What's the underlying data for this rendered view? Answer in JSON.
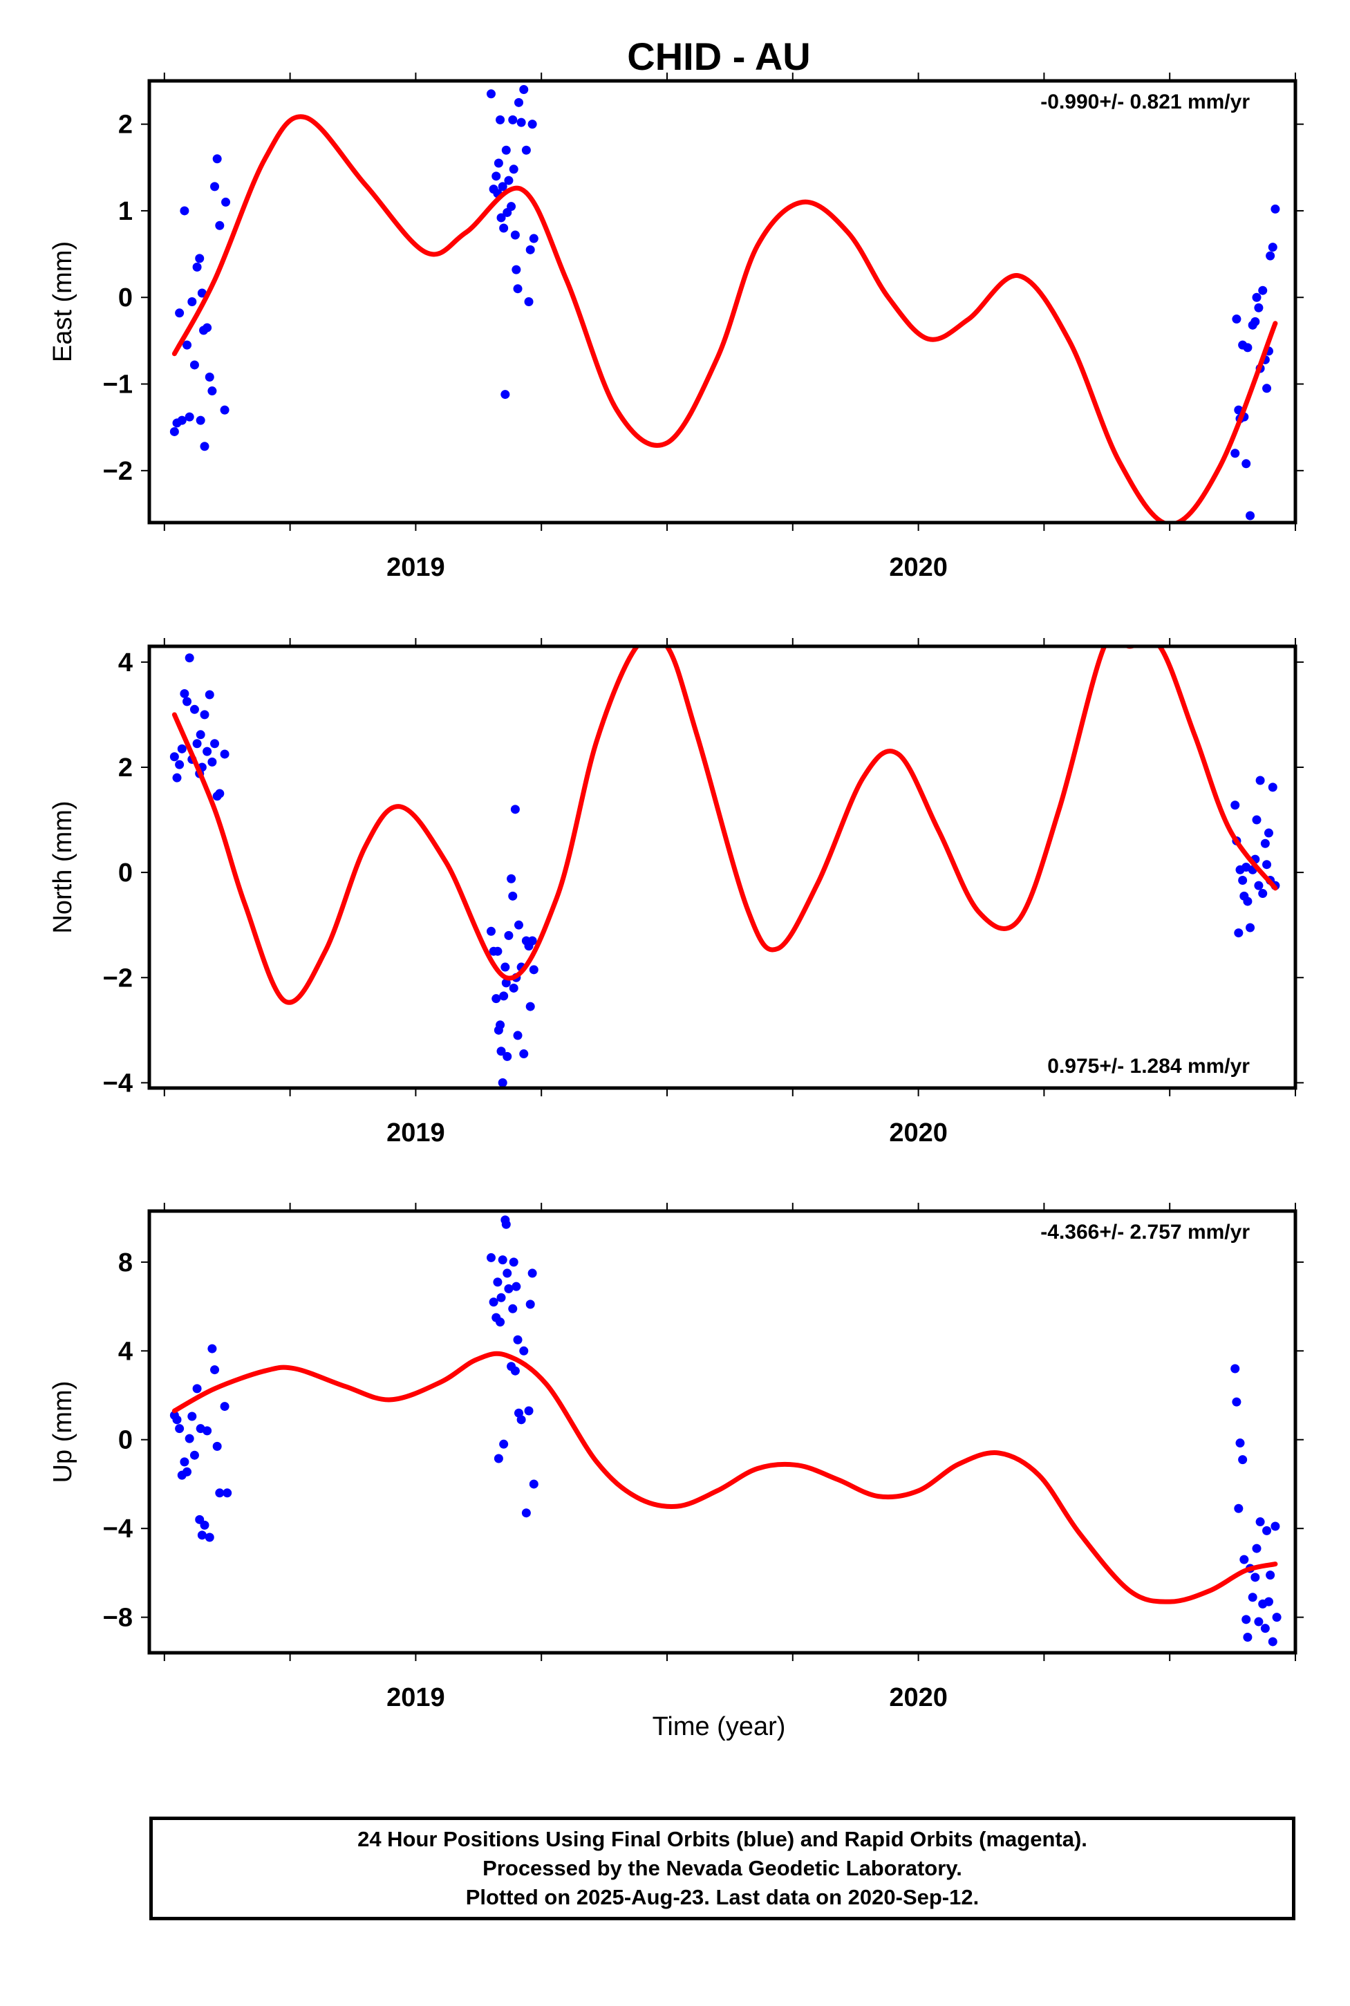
{
  "title": "CHID - AU",
  "xlabel": "Time (year)",
  "colors": {
    "final_orbits": "#0000ff",
    "fit": "#ff0000",
    "frame": "#000000"
  },
  "caption": {
    "line1": "24 Hour Positions Using Final Orbits (blue) and Rapid Orbits (magenta).",
    "line2": "Processed by the Nevada Geodetic Laboratory.",
    "line3": "Plotted on 2025-Aug-23. Last data on 2020-Sep-12."
  },
  "chart_data": [
    {
      "type": "scatter",
      "panel": "east",
      "ylabel": "East (mm)",
      "rate": "-0.990+/- 0.821 mm/yr",
      "rate_position": "top-right",
      "xlim": [
        2018.47,
        2020.75
      ],
      "ylim": [
        -2.6,
        2.5
      ],
      "xticks": [
        2019,
        2020
      ],
      "yticks": [
        -2,
        -1,
        0,
        1,
        2
      ],
      "ytick_labels": [
        "−2",
        "−1",
        "0",
        "1",
        "2"
      ],
      "points": [
        [
          2018.52,
          -1.55
        ],
        [
          2018.525,
          -1.45
        ],
        [
          2018.53,
          -0.18
        ],
        [
          2018.535,
          -1.42
        ],
        [
          2018.54,
          1.0
        ],
        [
          2018.545,
          -0.55
        ],
        [
          2018.55,
          -1.38
        ],
        [
          2018.555,
          -0.05
        ],
        [
          2018.56,
          -0.78
        ],
        [
          2018.565,
          0.35
        ],
        [
          2018.57,
          0.45
        ],
        [
          2018.572,
          -1.42
        ],
        [
          2018.575,
          0.05
        ],
        [
          2018.578,
          -0.38
        ],
        [
          2018.58,
          -1.72
        ],
        [
          2018.585,
          -0.35
        ],
        [
          2018.59,
          -0.92
        ],
        [
          2018.595,
          -1.08
        ],
        [
          2018.6,
          1.28
        ],
        [
          2018.605,
          1.6
        ],
        [
          2018.61,
          0.83
        ],
        [
          2018.62,
          -1.3
        ],
        [
          2018.622,
          1.1
        ],
        [
          2019.15,
          2.35
        ],
        [
          2019.155,
          1.25
        ],
        [
          2019.16,
          1.4
        ],
        [
          2019.163,
          1.2
        ],
        [
          2019.165,
          1.55
        ],
        [
          2019.168,
          2.05
        ],
        [
          2019.17,
          0.92
        ],
        [
          2019.173,
          1.28
        ],
        [
          2019.175,
          0.8
        ],
        [
          2019.178,
          -1.12
        ],
        [
          2019.18,
          1.7
        ],
        [
          2019.182,
          0.98
        ],
        [
          2019.185,
          1.35
        ],
        [
          2019.19,
          1.05
        ],
        [
          2019.193,
          2.05
        ],
        [
          2019.195,
          1.48
        ],
        [
          2019.198,
          0.72
        ],
        [
          2019.2,
          0.32
        ],
        [
          2019.203,
          0.1
        ],
        [
          2019.205,
          2.25
        ],
        [
          2019.21,
          2.02
        ],
        [
          2019.215,
          2.4
        ],
        [
          2019.22,
          1.7
        ],
        [
          2019.225,
          -0.05
        ],
        [
          2019.228,
          0.55
        ],
        [
          2019.232,
          2.0
        ],
        [
          2019.235,
          0.68
        ],
        [
          2020.63,
          -1.8
        ],
        [
          2020.633,
          -0.25
        ],
        [
          2020.637,
          -1.3
        ],
        [
          2020.64,
          -1.4
        ],
        [
          2020.645,
          -0.55
        ],
        [
          2020.648,
          -1.38
        ],
        [
          2020.652,
          -1.92
        ],
        [
          2020.655,
          -0.58
        ],
        [
          2020.66,
          -2.52
        ],
        [
          2020.665,
          -0.32
        ],
        [
          2020.67,
          -0.28
        ],
        [
          2020.673,
          0.0
        ],
        [
          2020.677,
          -0.12
        ],
        [
          2020.68,
          -0.82
        ],
        [
          2020.685,
          0.08
        ],
        [
          2020.69,
          -0.72
        ],
        [
          2020.693,
          -1.05
        ],
        [
          2020.697,
          -0.62
        ],
        [
          2020.7,
          0.48
        ],
        [
          2020.705,
          0.58
        ],
        [
          2020.71,
          1.02
        ]
      ],
      "fit_curve": {
        "x": [
          2018.52,
          2018.6,
          2018.7,
          2018.78,
          2018.9,
          2019.02,
          2019.1,
          2019.21,
          2019.3,
          2019.4,
          2019.5,
          2019.6,
          2019.68,
          2019.77,
          2019.86,
          2019.94,
          2020.02,
          2020.1,
          2020.2,
          2020.3,
          2020.4,
          2020.5,
          2020.6,
          2020.71
        ],
        "y": [
          -0.65,
          0.2,
          1.6,
          2.08,
          1.3,
          0.52,
          0.75,
          1.25,
          0.2,
          -1.3,
          -1.68,
          -0.7,
          0.6,
          1.1,
          0.75,
          0.0,
          -0.48,
          -0.25,
          0.25,
          -0.5,
          -1.9,
          -2.62,
          -1.95,
          -0.3
        ]
      }
    },
    {
      "type": "scatter",
      "panel": "north",
      "ylabel": "North (mm)",
      "rate": "0.975+/- 1.284 mm/yr",
      "rate_position": "bottom-right",
      "xlim": [
        2018.47,
        2020.75
      ],
      "ylim": [
        -4.1,
        4.3
      ],
      "xticks": [
        2019,
        2020
      ],
      "yticks": [
        -4,
        -2,
        0,
        2,
        4
      ],
      "ytick_labels": [
        "−4",
        "−2",
        "0",
        "2",
        "4"
      ],
      "points": [
        [
          2018.52,
          2.2
        ],
        [
          2018.525,
          1.8
        ],
        [
          2018.53,
          2.05
        ],
        [
          2018.535,
          2.35
        ],
        [
          2018.54,
          3.4
        ],
        [
          2018.545,
          3.25
        ],
        [
          2018.55,
          4.08
        ],
        [
          2018.555,
          2.15
        ],
        [
          2018.56,
          3.1
        ],
        [
          2018.565,
          2.45
        ],
        [
          2018.57,
          1.88
        ],
        [
          2018.572,
          2.62
        ],
        [
          2018.575,
          2.0
        ],
        [
          2018.58,
          3.0
        ],
        [
          2018.585,
          2.3
        ],
        [
          2018.59,
          3.38
        ],
        [
          2018.595,
          2.1
        ],
        [
          2018.6,
          2.45
        ],
        [
          2018.605,
          1.45
        ],
        [
          2018.61,
          1.5
        ],
        [
          2018.62,
          2.25
        ],
        [
          2019.15,
          -1.12
        ],
        [
          2019.155,
          -1.5
        ],
        [
          2019.16,
          -2.4
        ],
        [
          2019.163,
          -1.5
        ],
        [
          2019.165,
          -3.0
        ],
        [
          2019.168,
          -2.9
        ],
        [
          2019.17,
          -3.4
        ],
        [
          2019.173,
          -4.0
        ],
        [
          2019.175,
          -2.35
        ],
        [
          2019.178,
          -1.8
        ],
        [
          2019.18,
          -2.1
        ],
        [
          2019.182,
          -3.5
        ],
        [
          2019.185,
          -1.2
        ],
        [
          2019.19,
          -0.12
        ],
        [
          2019.193,
          -0.45
        ],
        [
          2019.195,
          -2.2
        ],
        [
          2019.198,
          1.2
        ],
        [
          2019.2,
          -2.0
        ],
        [
          2019.203,
          -3.1
        ],
        [
          2019.205,
          -1.0
        ],
        [
          2019.21,
          -1.8
        ],
        [
          2019.215,
          -3.45
        ],
        [
          2019.22,
          -1.3
        ],
        [
          2019.225,
          -1.4
        ],
        [
          2019.228,
          -2.55
        ],
        [
          2019.232,
          -1.3
        ],
        [
          2019.235,
          -1.85
        ],
        [
          2020.63,
          1.28
        ],
        [
          2020.633,
          0.6
        ],
        [
          2020.637,
          -1.15
        ],
        [
          2020.64,
          0.05
        ],
        [
          2020.645,
          -0.15
        ],
        [
          2020.648,
          -0.45
        ],
        [
          2020.652,
          0.1
        ],
        [
          2020.655,
          -0.55
        ],
        [
          2020.66,
          -1.05
        ],
        [
          2020.665,
          0.05
        ],
        [
          2020.67,
          0.25
        ],
        [
          2020.673,
          1.0
        ],
        [
          2020.677,
          -0.25
        ],
        [
          2020.68,
          1.75
        ],
        [
          2020.685,
          -0.4
        ],
        [
          2020.69,
          0.55
        ],
        [
          2020.693,
          0.15
        ],
        [
          2020.697,
          0.75
        ],
        [
          2020.7,
          -0.15
        ],
        [
          2020.705,
          1.62
        ],
        [
          2020.71,
          -0.25
        ]
      ],
      "fit_curve": {
        "x": [
          2018.52,
          2018.6,
          2018.66,
          2018.74,
          2018.82,
          2018.9,
          2018.97,
          2019.06,
          2019.18,
          2019.28,
          2019.36,
          2019.44,
          2019.5,
          2019.56,
          2019.66,
          2019.72,
          2019.8,
          2019.89,
          2019.96,
          2020.04,
          2020.12,
          2020.2,
          2020.28,
          2020.37,
          2020.42,
          2020.48,
          2020.55,
          2020.62,
          2020.71
        ],
        "y": [
          3.0,
          1.2,
          -0.6,
          -2.45,
          -1.5,
          0.5,
          1.25,
          0.2,
          -2.0,
          -0.5,
          2.5,
          4.3,
          4.3,
          2.6,
          -0.7,
          -1.45,
          -0.2,
          1.8,
          2.25,
          0.8,
          -0.75,
          -0.9,
          1.2,
          4.3,
          4.3,
          4.3,
          2.6,
          0.8,
          -0.3
        ]
      }
    },
    {
      "type": "scatter",
      "panel": "up",
      "ylabel": "Up (mm)",
      "rate": "-4.366+/- 2.757 mm/yr",
      "rate_position": "top-right",
      "xlabel": "Time (year)",
      "xlim": [
        2018.47,
        2020.75
      ],
      "ylim": [
        -9.6,
        10.3
      ],
      "xticks": [
        2019,
        2020
      ],
      "yticks": [
        -8,
        -4,
        0,
        4,
        8
      ],
      "ytick_labels": [
        "−8",
        "−4",
        "0",
        "4",
        "8"
      ],
      "points": [
        [
          2018.52,
          1.1
        ],
        [
          2018.525,
          0.9
        ],
        [
          2018.53,
          0.5
        ],
        [
          2018.535,
          -1.6
        ],
        [
          2018.54,
          -1.0
        ],
        [
          2018.545,
          -1.45
        ],
        [
          2018.55,
          0.05
        ],
        [
          2018.555,
          1.05
        ],
        [
          2018.56,
          -0.7
        ],
        [
          2018.565,
          2.3
        ],
        [
          2018.57,
          -3.6
        ],
        [
          2018.572,
          0.5
        ],
        [
          2018.575,
          -4.3
        ],
        [
          2018.58,
          -3.85
        ],
        [
          2018.585,
          0.4
        ],
        [
          2018.59,
          -4.4
        ],
        [
          2018.595,
          4.1
        ],
        [
          2018.6,
          3.15
        ],
        [
          2018.605,
          -0.3
        ],
        [
          2018.61,
          -2.4
        ],
        [
          2018.62,
          1.5
        ],
        [
          2018.625,
          -2.4
        ],
        [
          2019.15,
          8.2
        ],
        [
          2019.155,
          6.2
        ],
        [
          2019.16,
          5.5
        ],
        [
          2019.163,
          7.1
        ],
        [
          2019.165,
          -0.85
        ],
        [
          2019.168,
          5.3
        ],
        [
          2019.17,
          6.4
        ],
        [
          2019.173,
          8.1
        ],
        [
          2019.175,
          -0.2
        ],
        [
          2019.178,
          9.9
        ],
        [
          2019.18,
          9.7
        ],
        [
          2019.182,
          7.5
        ],
        [
          2019.185,
          6.8
        ],
        [
          2019.19,
          3.3
        ],
        [
          2019.193,
          5.9
        ],
        [
          2019.195,
          8.0
        ],
        [
          2019.198,
          3.1
        ],
        [
          2019.2,
          6.9
        ],
        [
          2019.203,
          4.5
        ],
        [
          2019.205,
          1.2
        ],
        [
          2019.21,
          0.9
        ],
        [
          2019.215,
          4.0
        ],
        [
          2019.22,
          -3.3
        ],
        [
          2019.225,
          1.3
        ],
        [
          2019.228,
          6.1
        ],
        [
          2019.232,
          7.5
        ],
        [
          2019.235,
          -2.0
        ],
        [
          2020.63,
          3.2
        ],
        [
          2020.633,
          1.7
        ],
        [
          2020.637,
          -3.1
        ],
        [
          2020.64,
          -0.15
        ],
        [
          2020.645,
          -0.9
        ],
        [
          2020.648,
          -5.4
        ],
        [
          2020.652,
          -8.1
        ],
        [
          2020.655,
          -8.9
        ],
        [
          2020.66,
          -5.8
        ],
        [
          2020.665,
          -7.1
        ],
        [
          2020.67,
          -6.2
        ],
        [
          2020.673,
          -4.9
        ],
        [
          2020.677,
          -8.2
        ],
        [
          2020.68,
          -3.7
        ],
        [
          2020.685,
          -7.4
        ],
        [
          2020.69,
          -8.5
        ],
        [
          2020.693,
          -4.1
        ],
        [
          2020.697,
          -7.3
        ],
        [
          2020.7,
          -6.1
        ],
        [
          2020.705,
          -9.1
        ],
        [
          2020.71,
          -3.9
        ],
        [
          2020.713,
          -8.0
        ]
      ],
      "fit_curve": {
        "x": [
          2018.52,
          2018.6,
          2018.7,
          2018.76,
          2018.86,
          2018.95,
          2019.05,
          2019.12,
          2019.18,
          2019.26,
          2019.36,
          2019.44,
          2019.52,
          2019.6,
          2019.68,
          2019.76,
          2019.84,
          2019.92,
          2020.0,
          2020.08,
          2020.16,
          2020.24,
          2020.32,
          2020.42,
          2020.5,
          2020.58,
          2020.65,
          2020.71
        ],
        "y": [
          1.3,
          2.3,
          3.1,
          3.2,
          2.4,
          1.8,
          2.6,
          3.6,
          3.8,
          2.5,
          -1.0,
          -2.6,
          -3.0,
          -2.3,
          -1.3,
          -1.15,
          -1.8,
          -2.55,
          -2.3,
          -1.1,
          -0.6,
          -1.6,
          -4.2,
          -6.8,
          -7.3,
          -6.8,
          -5.9,
          -5.6
        ]
      }
    }
  ]
}
